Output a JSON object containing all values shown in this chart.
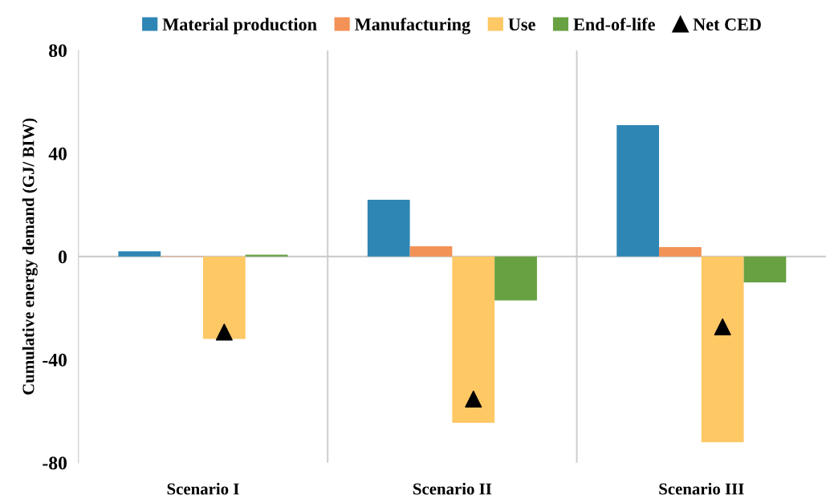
{
  "chart_data": {
    "type": "bar",
    "ylabel": "Cumulative energy demand (GJ/ BIW)",
    "categories": [
      "Scenario I",
      "Scenario II",
      "Scenario III"
    ],
    "series": [
      {
        "name": "Material production",
        "color": "#2e86b5",
        "values": [
          2,
          22,
          51
        ]
      },
      {
        "name": "Manufacturing",
        "color": "#f39256",
        "values": [
          0.2,
          4,
          3.7
        ]
      },
      {
        "name": "Use",
        "color": "#fec865",
        "values": [
          -32,
          -64.5,
          -72
        ]
      },
      {
        "name": "End-of-life",
        "color": "#67a141",
        "values": [
          0.7,
          -17,
          -10
        ]
      },
      {
        "name": "Net CED",
        "type": "scatter",
        "color": "#000000",
        "marker": "triangle",
        "values": [
          -29.3,
          -55.3,
          -27.3
        ]
      }
    ],
    "ylim": [
      -80,
      80
    ],
    "yticks": [
      -80,
      -40,
      0,
      40,
      80
    ],
    "ref_lines": [
      {
        "axis": "y",
        "value": 0,
        "color": "#c8c8c8"
      }
    ],
    "grid": "x",
    "legend": "top"
  }
}
